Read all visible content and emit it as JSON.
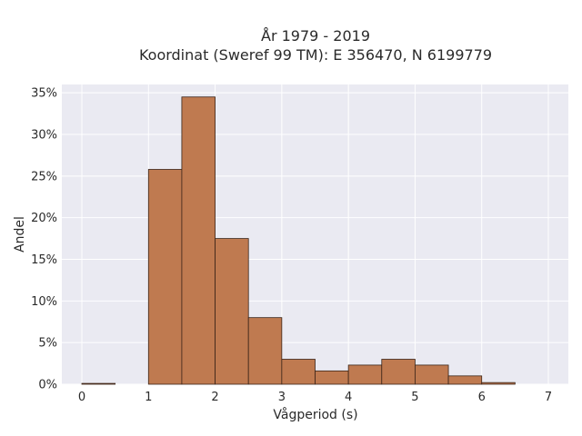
{
  "chart_data": {
    "type": "bar",
    "title_line1": "År 1979 - 2019",
    "title_line2": "Koordinat (Sweref 99 TM): E 356470, N 6199779",
    "xlabel": "Vågperiod (s)",
    "ylabel": "Andel",
    "xlim": [
      -0.3,
      7.3
    ],
    "ylim": [
      0,
      36
    ],
    "x_ticks": [
      0,
      1,
      2,
      3,
      4,
      5,
      6,
      7
    ],
    "y_ticks": [
      0,
      5,
      10,
      15,
      20,
      25,
      30,
      35
    ],
    "y_tick_labels": [
      "0%",
      "5%",
      "10%",
      "15%",
      "20%",
      "25%",
      "30%",
      "35%"
    ],
    "bin_width": 0.5,
    "bins": [
      {
        "x0": 0.0,
        "value": 0.1
      },
      {
        "x0": 0.5,
        "value": 0.0
      },
      {
        "x0": 1.0,
        "value": 25.8
      },
      {
        "x0": 1.5,
        "value": 34.5
      },
      {
        "x0": 2.0,
        "value": 17.5
      },
      {
        "x0": 2.5,
        "value": 8.0
      },
      {
        "x0": 3.0,
        "value": 3.0
      },
      {
        "x0": 3.5,
        "value": 1.6
      },
      {
        "x0": 4.0,
        "value": 2.3
      },
      {
        "x0": 4.5,
        "value": 3.0
      },
      {
        "x0": 5.0,
        "value": 2.3
      },
      {
        "x0": 5.5,
        "value": 1.0
      },
      {
        "x0": 6.0,
        "value": 0.2
      },
      {
        "x0": 6.5,
        "value": 0.0
      }
    ],
    "grid": true,
    "colors": {
      "bar_fill": "#bf7a50",
      "bar_stroke": "#3a2418",
      "plot_bg": "#eaeaf2",
      "grid": "#ffffff"
    }
  }
}
